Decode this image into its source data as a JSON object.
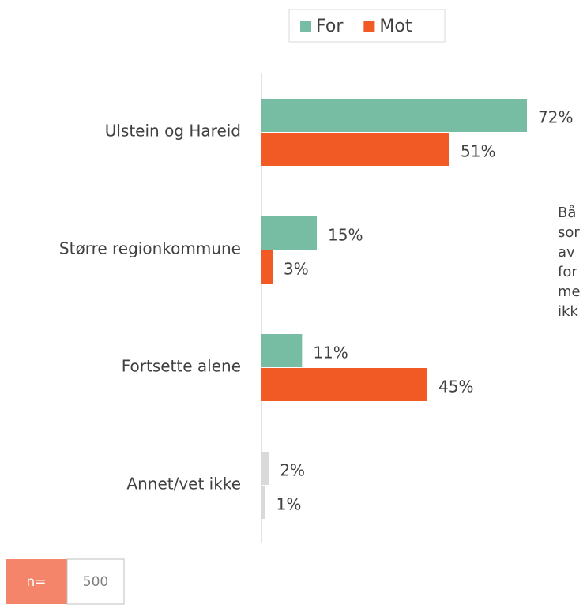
{
  "chart_data": {
    "type": "hbar",
    "categories": [
      "Ulstein og Hareid",
      "Større regionkommune",
      "Fortsette alene",
      "Annet/vet ikke"
    ],
    "series": [
      {
        "name": "For",
        "color": "#76bda3",
        "colors": [
          "#76bda3",
          "#76bda3",
          "#76bda3",
          "#d9d9d9"
        ],
        "values": [
          72,
          15,
          11,
          2
        ],
        "value_labels": [
          "72%",
          "15%",
          "11%",
          "2%"
        ]
      },
      {
        "name": "Mot",
        "color": "#f15a24",
        "colors": [
          "#f15a24",
          "#f15a24",
          "#f15a24",
          "#d9d9d9"
        ],
        "values": [
          51,
          3,
          45,
          1
        ],
        "value_labels": [
          "51%",
          "3%",
          "45%",
          "1%"
        ]
      }
    ],
    "xlim": [
      0,
      100
    ],
    "legend": "top",
    "annotation": [
      "Bå",
      "sor",
      "av",
      "for",
      "me",
      "ikk"
    ],
    "sample": {
      "label": "n=",
      "value": "500"
    }
  }
}
